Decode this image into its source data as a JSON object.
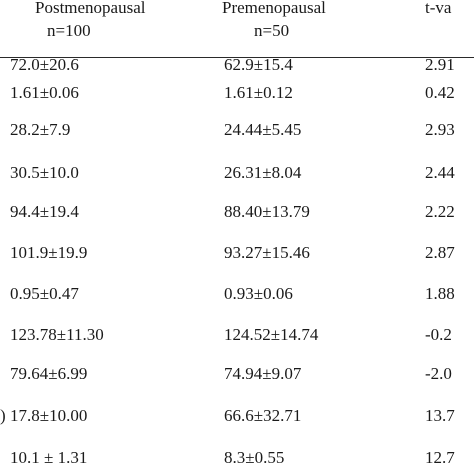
{
  "table": {
    "headers": {
      "postmenopausal": "Postmenopausal",
      "postmenopausal_n": "n=100",
      "premenopausal": "Premenopausal",
      "premenopausal_n": "n=50",
      "tvalue": "t-va"
    },
    "rows": [
      {
        "label": "",
        "post": "72.0±20.6",
        "pre": "62.9±15.4",
        "t": "2.91"
      },
      {
        "label": "",
        "post": "1.61±0.06",
        "pre": "1.61±0.12",
        "t": "0.42"
      },
      {
        "label": "",
        "post": "28.2±7.9",
        "pre": "24.44±5.45",
        "t": "2.93"
      },
      {
        "label": "",
        "post": "30.5±10.0",
        "pre": "26.31±8.04",
        "t": "2.44"
      },
      {
        "label": "",
        "post": "94.4±19.4",
        "pre": "88.40±13.79",
        "t": "2.22"
      },
      {
        "label": "",
        "post": "101.9±19.9",
        "pre": "93.27±15.46",
        "t": "2.87"
      },
      {
        "label": "",
        "post": "0.95±0.47",
        "pre": "0.93±0.06",
        "t": "1.88"
      },
      {
        "label": "",
        "post": "123.78±11.30",
        "pre": "124.52±14.74",
        "t": "-0.2"
      },
      {
        "label": "",
        "post": "79.64±6.99",
        "pre": "74.94±9.07",
        "t": "-2.0"
      },
      {
        "label": ")",
        "post": "17.8±10.00",
        "pre": "66.6±32.71",
        "t": "13.7"
      },
      {
        "label": "",
        "post": "10.1 ± 1.31",
        "pre": "8.3±0.55",
        "t": "12.7"
      }
    ]
  }
}
